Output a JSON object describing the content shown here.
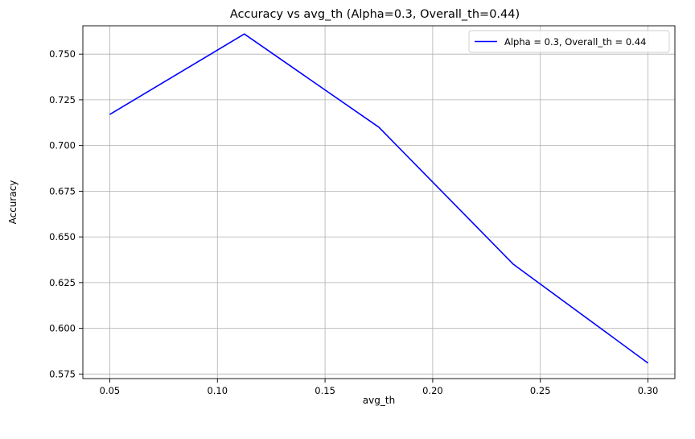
{
  "chart_data": {
    "type": "line",
    "title": "Accuracy vs avg_th (Alpha=0.3, Overall_th=0.44)",
    "xlabel": "avg_th",
    "ylabel": "Accuracy",
    "xlim": [
      0.0375,
      0.3125
    ],
    "ylim": [
      0.5725,
      0.7655
    ],
    "xticks": [
      0.05,
      0.1,
      0.15,
      0.2,
      0.25,
      0.3
    ],
    "xtick_labels": [
      "0.05",
      "0.10",
      "0.15",
      "0.20",
      "0.25",
      "0.30"
    ],
    "yticks": [
      0.575,
      0.6,
      0.625,
      0.65,
      0.675,
      0.7,
      0.725,
      0.75
    ],
    "ytick_labels": [
      "0.575",
      "0.600",
      "0.625",
      "0.650",
      "0.675",
      "0.700",
      "0.725",
      "0.750"
    ],
    "grid": true,
    "legend_position": "top-right",
    "series": [
      {
        "name": "Alpha = 0.3, Overall_th = 0.44",
        "color": "#0000ff",
        "x": [
          0.05,
          0.1125,
          0.175,
          0.2375,
          0.3
        ],
        "y": [
          0.717,
          0.761,
          0.71,
          0.635,
          0.581
        ]
      }
    ]
  }
}
